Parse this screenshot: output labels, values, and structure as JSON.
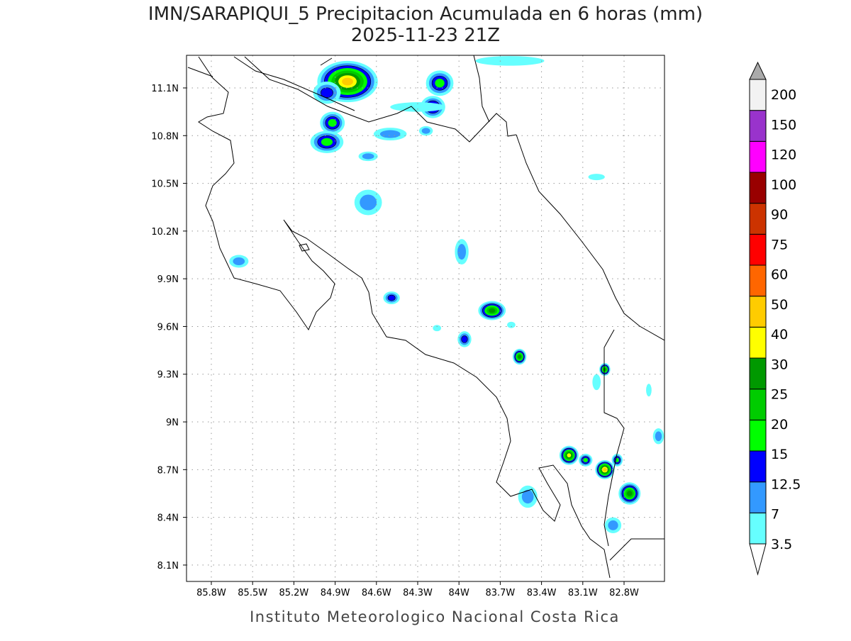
{
  "title": {
    "line1": "IMN/SARAPIQUI_5 Precipitacion Acumulada en 6 horas (mm)",
    "line2": "2025-11-23 21Z"
  },
  "credit": "Instituto Meteorologico Nacional Costa Rica",
  "chart_data": {
    "type": "heatmap",
    "map_extent": {
      "lon": [
        -85.98,
        -82.51
      ],
      "lat": [
        8.02,
        11.3
      ]
    },
    "grid": true,
    "lat_ticks": [
      {
        "value": 11.1,
        "label": "11.1N"
      },
      {
        "value": 10.8,
        "label": "10.8N"
      },
      {
        "value": 10.5,
        "label": "10.5N"
      },
      {
        "value": 10.2,
        "label": "10.2N"
      },
      {
        "value": 9.9,
        "label": "9.9N"
      },
      {
        "value": 9.6,
        "label": "9.6N"
      },
      {
        "value": 9.3,
        "label": "9.3N"
      },
      {
        "value": 9.0,
        "label": "9N"
      },
      {
        "value": 8.7,
        "label": "8.7N"
      },
      {
        "value": 8.4,
        "label": "8.4N"
      },
      {
        "value": 8.1,
        "label": "8.1N"
      }
    ],
    "lon_ticks": [
      {
        "value": -85.8,
        "label": "85.8W"
      },
      {
        "value": -85.5,
        "label": "85.5W"
      },
      {
        "value": -85.2,
        "label": "85.2W"
      },
      {
        "value": -84.9,
        "label": "84.9W"
      },
      {
        "value": -84.6,
        "label": "84.6W"
      },
      {
        "value": -84.3,
        "label": "84.3W"
      },
      {
        "value": -84.0,
        "label": "84W"
      },
      {
        "value": -83.7,
        "label": "83.7W"
      },
      {
        "value": -83.4,
        "label": "83.4W"
      },
      {
        "value": -83.1,
        "label": "83.1W"
      },
      {
        "value": -82.8,
        "label": "82.8W"
      }
    ],
    "colorbar": {
      "labels": [
        "200",
        "150",
        "120",
        "100",
        "90",
        "75",
        "60",
        "50",
        "40",
        "30",
        "25",
        "20",
        "15",
        "12.5",
        "7",
        "3.5"
      ],
      "colors_bottom_to_top": [
        "#66ffff",
        "#3399ff",
        "#0000ff",
        "#00ff00",
        "#00cc00",
        "#009900",
        "#ffff00",
        "#ffcc00",
        "#ff6600",
        "#ff0000",
        "#cc3300",
        "#990000",
        "#ff00ff",
        "#9933cc",
        "#f2f2f2"
      ],
      "over_color": "#aaaaaa",
      "under_color": "#ffffff"
    },
    "cells": [
      {
        "lon": -84.81,
        "lat": 11.14,
        "max_level": 7,
        "rx": 0.22,
        "ry": 0.13
      },
      {
        "lon": -84.96,
        "lat": 11.07,
        "max_level": 2,
        "rx": 0.1,
        "ry": 0.07
      },
      {
        "lon": -84.92,
        "lat": 10.88,
        "max_level": 3,
        "rx": 0.09,
        "ry": 0.07
      },
      {
        "lon": -84.96,
        "lat": 10.76,
        "max_level": 3,
        "rx": 0.12,
        "ry": 0.07
      },
      {
        "lon": -84.14,
        "lat": 11.13,
        "max_level": 3,
        "rx": 0.1,
        "ry": 0.08
      },
      {
        "lon": -84.19,
        "lat": 10.98,
        "max_level": 3,
        "rx": 0.09,
        "ry": 0.07
      },
      {
        "lon": -84.66,
        "lat": 10.38,
        "max_level": 1,
        "rx": 0.1,
        "ry": 0.08
      },
      {
        "lon": -85.6,
        "lat": 10.01,
        "max_level": 1,
        "rx": 0.07,
        "ry": 0.04
      },
      {
        "lon": -84.49,
        "lat": 9.78,
        "max_level": 2,
        "rx": 0.06,
        "ry": 0.04
      },
      {
        "lon": -83.98,
        "lat": 10.07,
        "max_level": 1,
        "rx": 0.05,
        "ry": 0.08
      },
      {
        "lon": -83.76,
        "lat": 9.7,
        "max_level": 5,
        "rx": 0.1,
        "ry": 0.06
      },
      {
        "lon": -83.96,
        "lat": 9.52,
        "max_level": 2,
        "rx": 0.05,
        "ry": 0.05
      },
      {
        "lon": -83.56,
        "lat": 9.41,
        "max_level": 5,
        "rx": 0.05,
        "ry": 0.05
      },
      {
        "lon": -82.94,
        "lat": 9.33,
        "max_level": 5,
        "rx": 0.04,
        "ry": 0.04
      },
      {
        "lon": -83.2,
        "lat": 8.79,
        "max_level": 6,
        "rx": 0.07,
        "ry": 0.06
      },
      {
        "lon": -83.08,
        "lat": 8.76,
        "max_level": 3,
        "rx": 0.05,
        "ry": 0.04
      },
      {
        "lon": -82.94,
        "lat": 8.7,
        "max_level": 7,
        "rx": 0.07,
        "ry": 0.06
      },
      {
        "lon": -82.76,
        "lat": 8.55,
        "max_level": 5,
        "rx": 0.08,
        "ry": 0.07
      },
      {
        "lon": -82.85,
        "lat": 8.76,
        "max_level": 3,
        "rx": 0.04,
        "ry": 0.04
      },
      {
        "lon": -83.5,
        "lat": 8.53,
        "max_level": 1,
        "rx": 0.07,
        "ry": 0.07
      },
      {
        "lon": -82.88,
        "lat": 8.35,
        "max_level": 1,
        "rx": 0.06,
        "ry": 0.05
      },
      {
        "lon": -82.55,
        "lat": 8.91,
        "max_level": 1,
        "rx": 0.04,
        "ry": 0.05
      },
      {
        "lon": -83.0,
        "lat": 10.54,
        "max_level": 0,
        "rx": 0.06,
        "ry": 0.02
      },
      {
        "lon": -83.63,
        "lat": 11.27,
        "max_level": 0,
        "rx": 0.25,
        "ry": 0.03
      },
      {
        "lon": -84.5,
        "lat": 10.81,
        "max_level": 1,
        "rx": 0.12,
        "ry": 0.04
      },
      {
        "lon": -84.24,
        "lat": 10.83,
        "max_level": 1,
        "rx": 0.05,
        "ry": 0.03
      },
      {
        "lon": -84.66,
        "lat": 10.67,
        "max_level": 1,
        "rx": 0.07,
        "ry": 0.03
      },
      {
        "lon": -84.3,
        "lat": 10.98,
        "max_level": 0,
        "rx": 0.2,
        "ry": 0.03
      },
      {
        "lon": -84.16,
        "lat": 9.59,
        "max_level": 0,
        "rx": 0.03,
        "ry": 0.02
      },
      {
        "lon": -83.62,
        "lat": 9.61,
        "max_level": 0,
        "rx": 0.03,
        "ry": 0.02
      },
      {
        "lon": -83.0,
        "lat": 9.25,
        "max_level": 0,
        "rx": 0.03,
        "ry": 0.05
      },
      {
        "lon": -82.62,
        "lat": 9.2,
        "max_level": 0,
        "rx": 0.02,
        "ry": 0.04
      }
    ]
  }
}
